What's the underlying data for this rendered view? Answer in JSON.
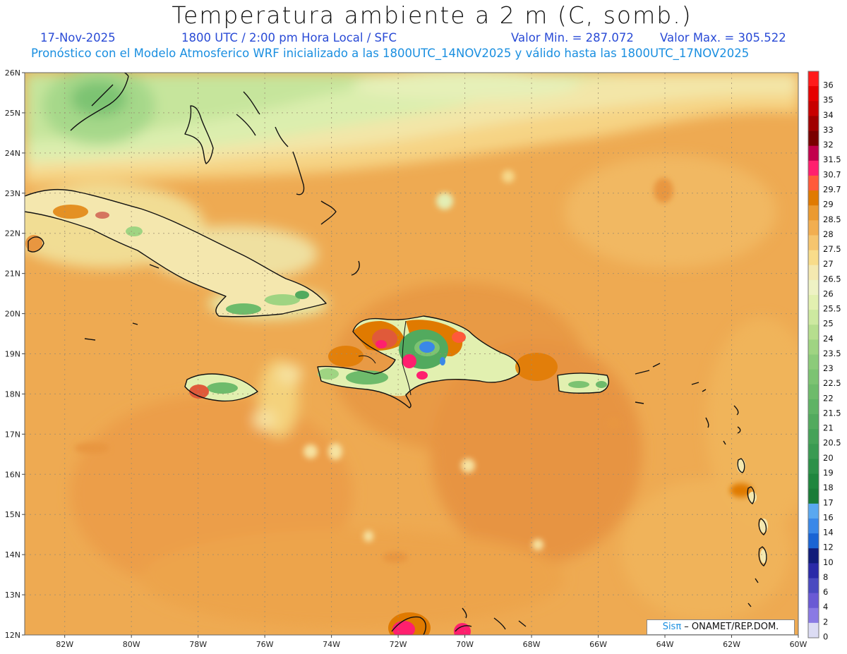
{
  "header": {
    "title": "Temperatura ambiente a 2 m (C, somb.)",
    "date": "17-Nov-2025",
    "time": "1800 UTC / 2:00 pm Hora Local / SFC",
    "min_label": "Valor Min. = 287.072",
    "max_label": "Valor Max. = 305.522",
    "forecast": "Pronóstico con el Modelo Atmosferico WRF inicializado a las 1800UTC_14NOV2025 y válido hasta las  1800UTC_17NOV2025"
  },
  "map": {
    "lat_labels": [
      "26N",
      "25N",
      "24N",
      "23N",
      "22N",
      "21N",
      "20N",
      "19N",
      "18N",
      "17N",
      "16N",
      "15N",
      "14N",
      "13N",
      "12N"
    ],
    "lon_labels": [
      "82W",
      "80W",
      "78W",
      "76W",
      "74W",
      "72W",
      "70W",
      "68W",
      "66W",
      "64W",
      "62W",
      "60W"
    ],
    "lat_range": [
      12,
      26
    ],
    "lon_range": [
      -83.2,
      -60
    ]
  },
  "colorbar": {
    "levels": [
      "36",
      "35",
      "34",
      "33",
      "32",
      "31.5",
      "30.7",
      "29.7",
      "29",
      "28.5",
      "28",
      "27.5",
      "27",
      "26.5",
      "26",
      "25.5",
      "25",
      "24",
      "23.5",
      "23",
      "22.5",
      "22",
      "21.5",
      "21",
      "20.5",
      "20",
      "19",
      "18",
      "17",
      "16",
      "14",
      "12",
      "10",
      "8",
      "6",
      "4",
      "2",
      "0"
    ],
    "colors": [
      "#ff1a1a",
      "#e60000",
      "#c80000",
      "#a00000",
      "#7a0000",
      "#c2004c",
      "#ff1f6e",
      "#ff5a3a",
      "#e07a00",
      "#eb9a30",
      "#f2ae50",
      "#f6c56e",
      "#f8dc8a",
      "#f4e9b0",
      "#eef2c4",
      "#e2f0b0",
      "#cde9a0",
      "#b6de8e",
      "#9fd482",
      "#8ccb7a",
      "#7cc372",
      "#6ebb6b",
      "#5fb365",
      "#52aa5e",
      "#46a258",
      "#3a9a52",
      "#2c9048",
      "#1f863e",
      "#1a7c38",
      "#5aa8f0",
      "#3a88e8",
      "#1a64d4",
      "#101c7a",
      "#2a2aa8",
      "#4a4ac0",
      "#6a5ad4",
      "#8a7ae4",
      "#dcdcf4"
    ]
  },
  "credit": {
    "brand": "Sisπ",
    "text": " – ONAMET/REP.DOM."
  }
}
